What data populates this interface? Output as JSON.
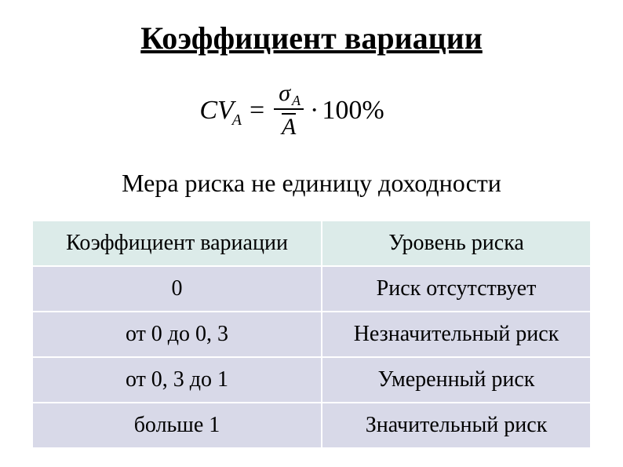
{
  "title": "Коэффициент вариации",
  "formula": {
    "cv_label": "CV",
    "cv_subscript": "A",
    "sigma": "σ",
    "sigma_subscript": "A",
    "denominator": "A",
    "multiplier": "100%"
  },
  "subtitle": "Мера риска не единицу доходности",
  "table": {
    "header_bg": "#dcebe9",
    "row_bg": "#d8d9e8",
    "border_color": "#ffffff",
    "columns": [
      "Коэффициент вариации",
      "Уровень риска"
    ],
    "rows": [
      [
        "0",
        "Риск отсутствует"
      ],
      [
        "от 0 до 0, 3",
        "Незначительный риск"
      ],
      [
        "от 0, 3 до 1",
        "Умеренный риск"
      ],
      [
        "больше 1",
        "Значительный риск"
      ]
    ]
  }
}
